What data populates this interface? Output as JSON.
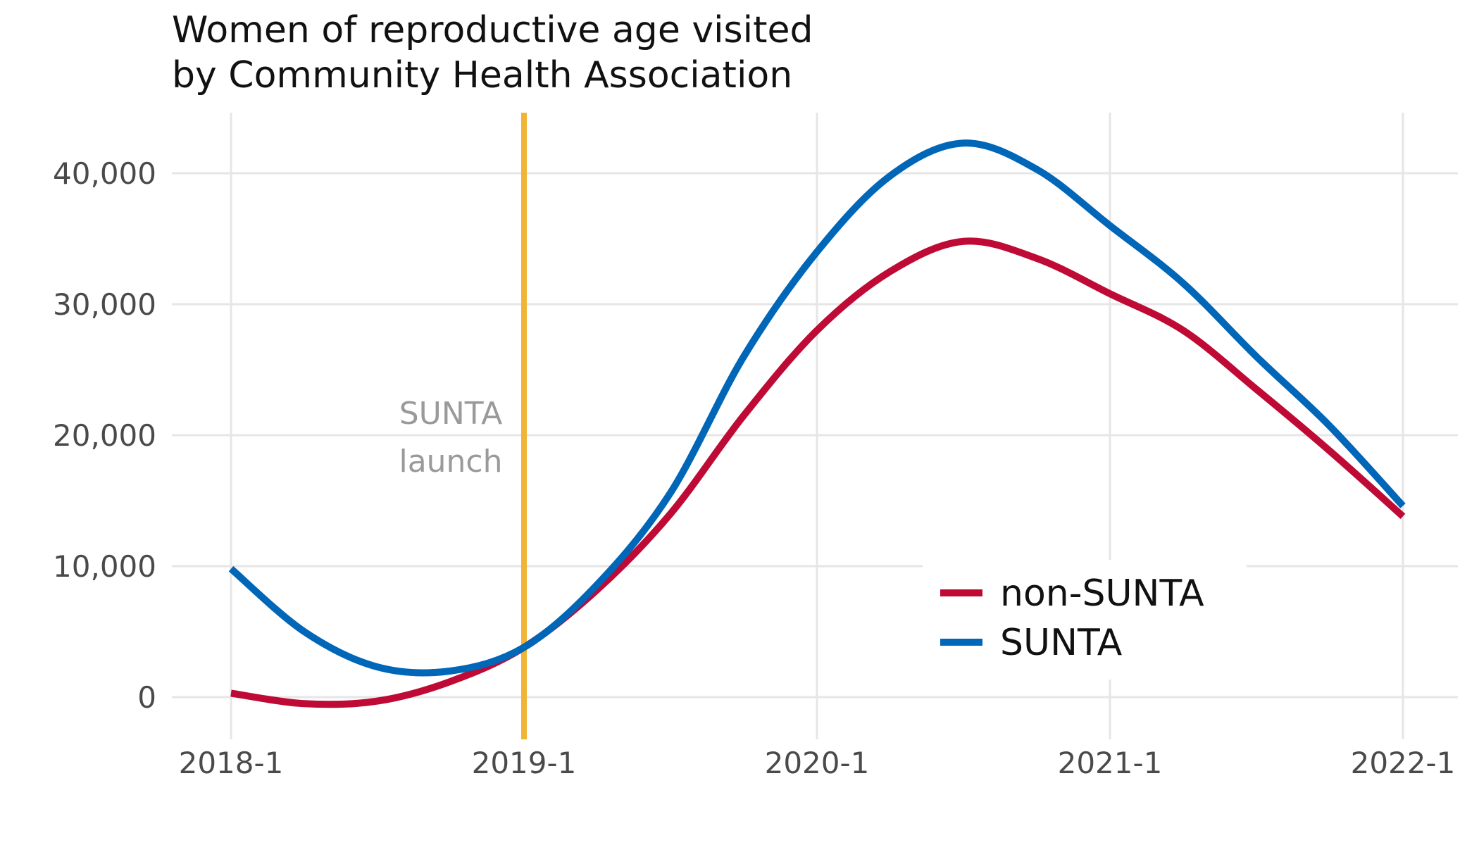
{
  "chart_data": {
    "type": "line",
    "title": [
      "Women of reproductive age visited",
      "by Community Health Association"
    ],
    "xlabel": "",
    "ylabel": "",
    "x": [
      2018.0,
      2018.25,
      2018.5,
      2018.75,
      2019.0,
      2019.25,
      2019.5,
      2019.75,
      2020.0,
      2020.25,
      2020.5,
      2020.75,
      2021.0,
      2021.25,
      2021.5,
      2021.75,
      2022.0
    ],
    "x_ticks": [
      2018,
      2019,
      2020,
      2021,
      2022
    ],
    "x_tick_labels": [
      "2018-1",
      "2019-1",
      "2020-1",
      "2021-1",
      "2022-1"
    ],
    "y_ticks": [
      0,
      10000,
      20000,
      30000,
      40000
    ],
    "y_tick_labels": [
      "0",
      "10,000",
      "20,000",
      "30,000",
      "40,000"
    ],
    "xlim": [
      2017.8,
      2022.2
    ],
    "ylim": [
      -3000,
      44500
    ],
    "grid": true,
    "legend_position": "bottom-right",
    "series": [
      {
        "name": "non-SUNTA",
        "color": "#be0a35",
        "values": [
          300,
          -500,
          -300,
          1200,
          3800,
          8200,
          14000,
          21500,
          28000,
          32500,
          34800,
          33500,
          30800,
          28000,
          23500,
          18800,
          13800
        ]
      },
      {
        "name": "SUNTA",
        "color": "#0066b8",
        "values": [
          9800,
          5000,
          2300,
          2000,
          3800,
          8600,
          15600,
          26000,
          34000,
          39800,
          42300,
          40300,
          36000,
          31600,
          26000,
          20700,
          14600
        ]
      }
    ],
    "vline": {
      "x": 2019.0,
      "color": "#f0b535"
    },
    "annotation": [
      "SUNTA",
      "launch"
    ]
  }
}
